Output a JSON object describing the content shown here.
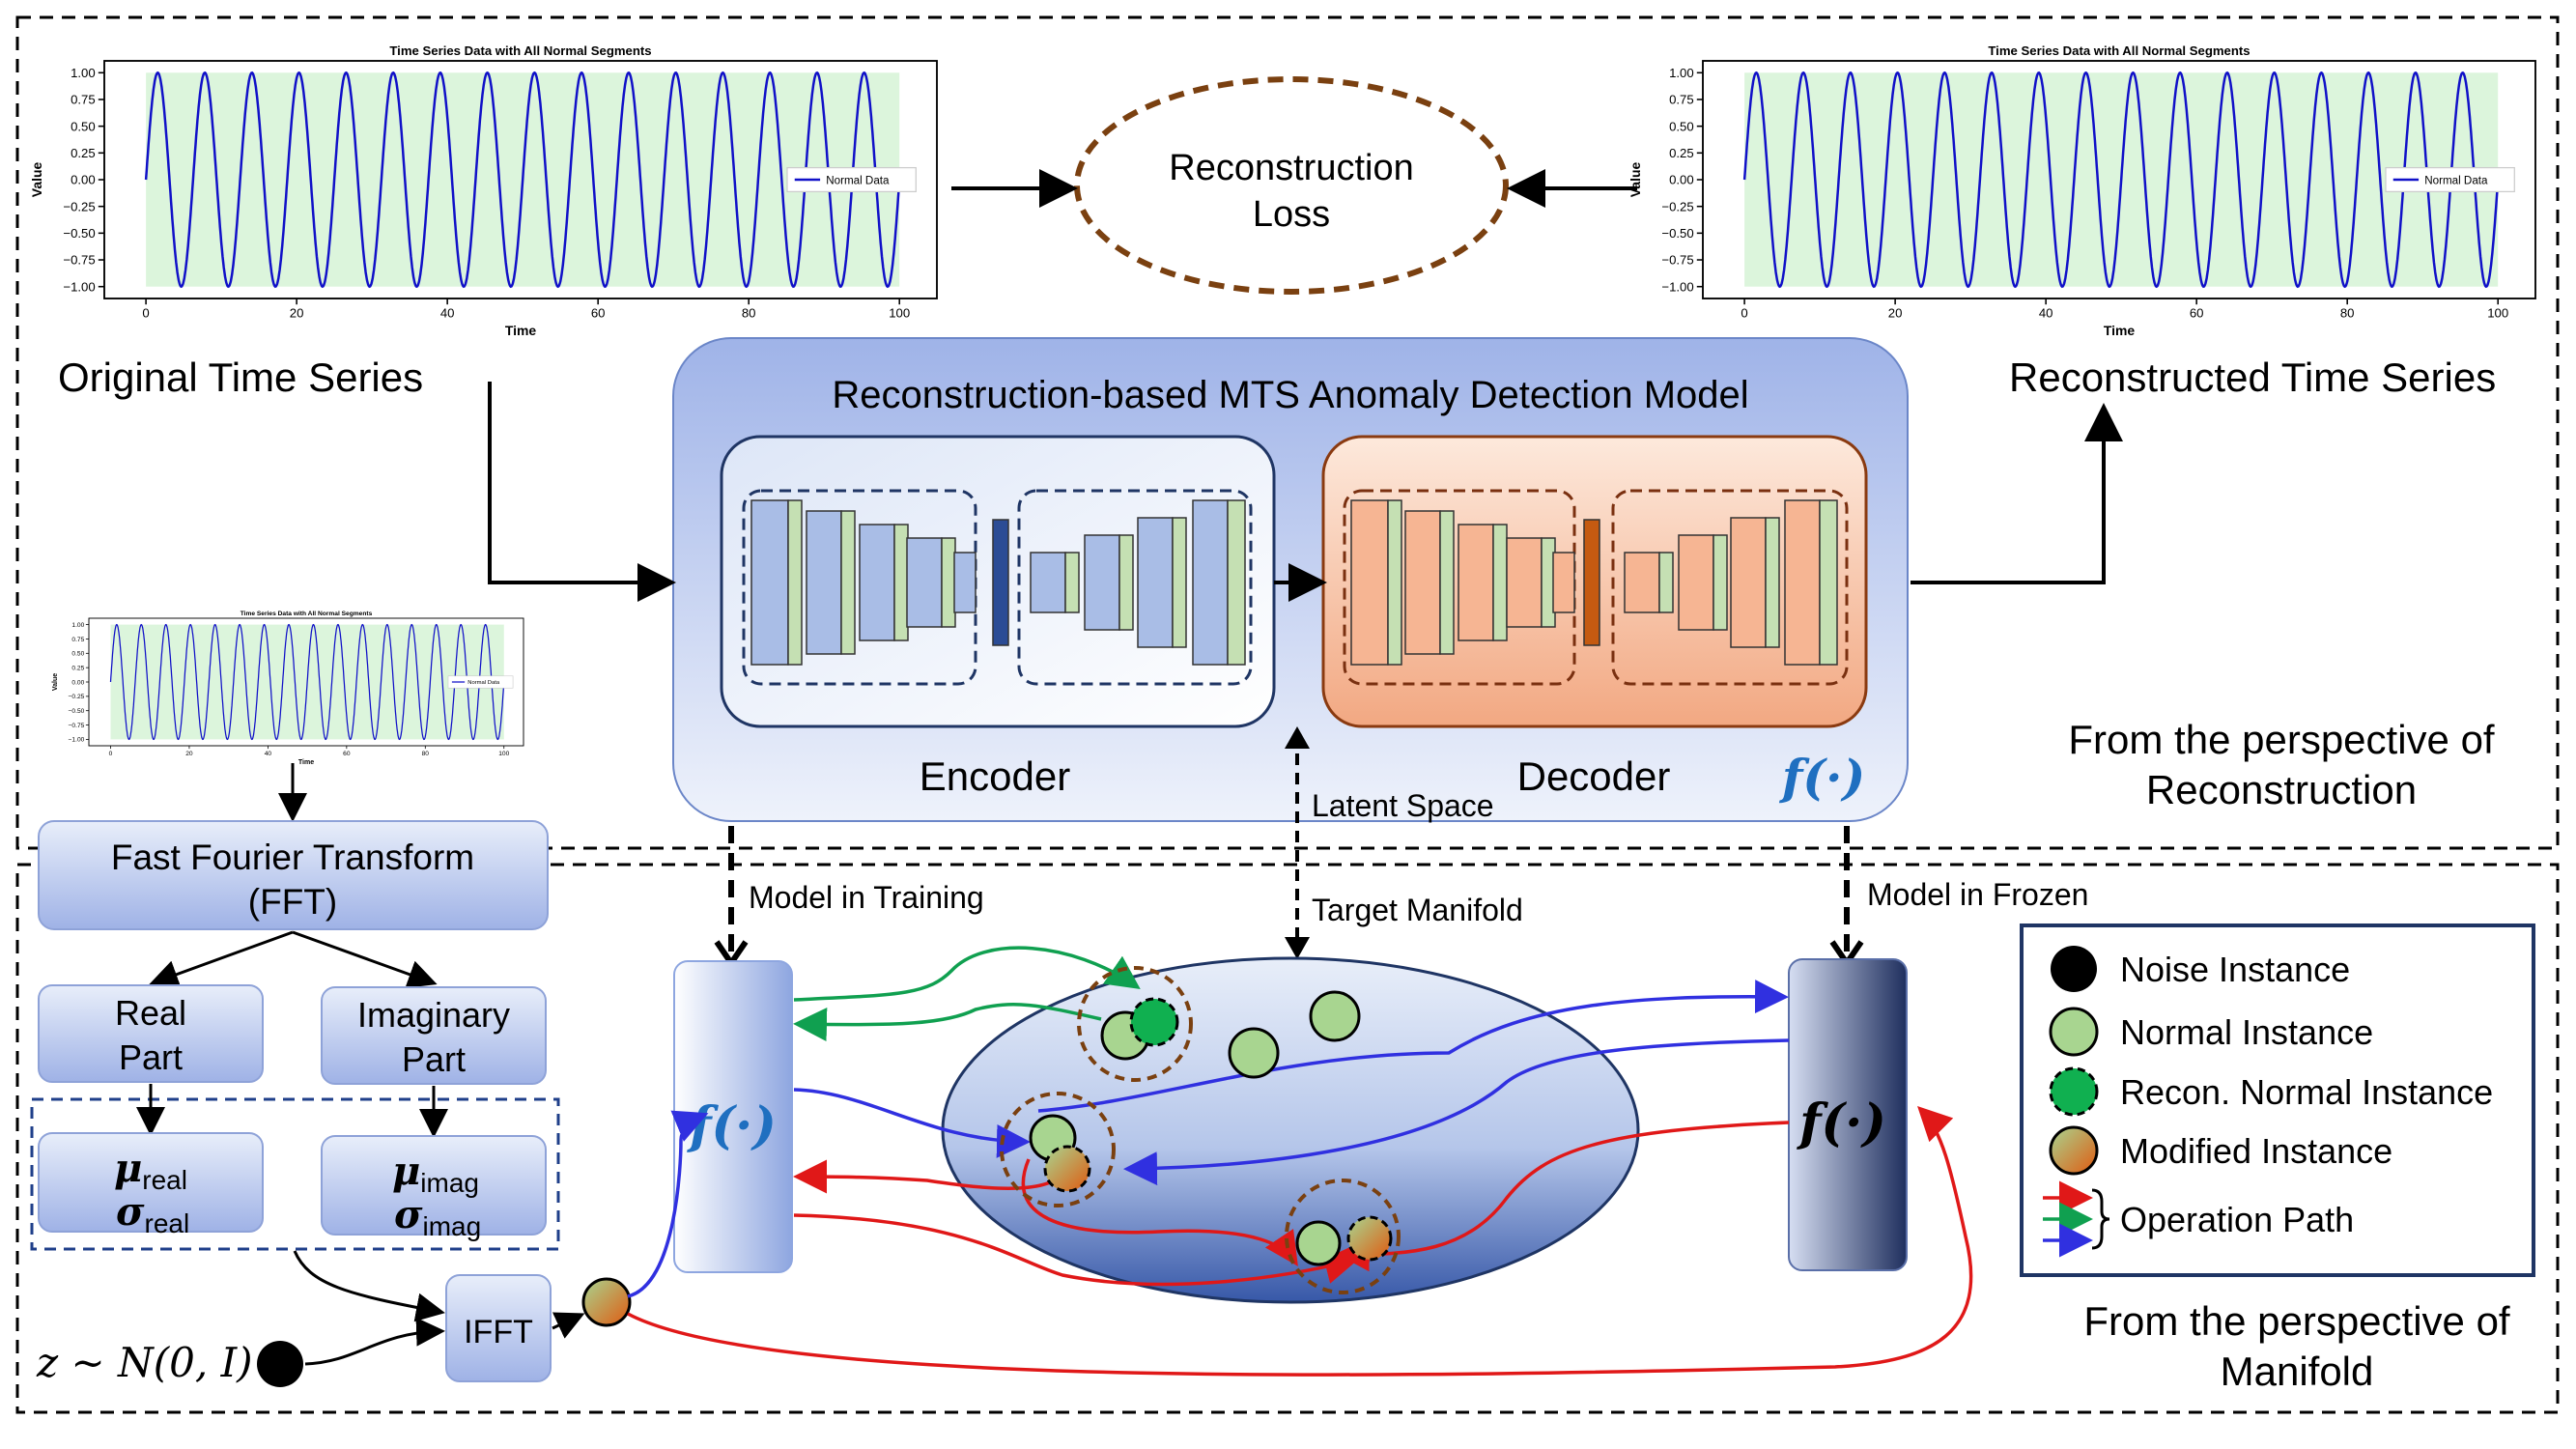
{
  "plots": {
    "title": "Time Series Data with All Normal Segments",
    "xlabel": "Time",
    "ylabel": "Value",
    "legend": "Normal Data",
    "yticks": [
      "1.00",
      "0.75",
      "0.50",
      "0.25",
      "0.00",
      "−0.25",
      "−0.50",
      "−0.75",
      "−1.00"
    ],
    "xticks": [
      "0",
      "20",
      "40",
      "60",
      "80",
      "100"
    ]
  },
  "chart_data": [
    {
      "type": "line",
      "title": "Time Series Data with All Normal Segments",
      "xlabel": "Time",
      "ylabel": "Value",
      "xlim": [
        0,
        100
      ],
      "ylim": [
        -1.0,
        1.0
      ],
      "series": [
        {
          "name": "Normal Data",
          "function": "sin",
          "cycles": 16,
          "color": "#1010c8"
        }
      ],
      "grid": false,
      "legend_position": "right"
    }
  ],
  "labels": {
    "original": "Original Time Series",
    "reconstructed": "Reconstructed Time Series",
    "loss_line1": "Reconstruction",
    "loss_line2": "Loss",
    "model_title": "Reconstruction-based MTS Anomaly Detection Model",
    "encoder": "Encoder",
    "decoder": "Decoder",
    "f_symbol": "f(·)",
    "latent_space": "Latent Space",
    "target_manifold": "Target Manifold",
    "model_training": "Model in Training",
    "model_frozen": "Model in Frozen",
    "persp_recon_1": "From the perspective of",
    "persp_recon_2": "Reconstruction",
    "persp_manifold_1": "From the perspective of",
    "persp_manifold_2": "Manifold",
    "fft_1": "Fast Fourier Transform",
    "fft_2": "(FFT)",
    "real_1": "Real",
    "real_2": "Part",
    "imag_1": "Imaginary",
    "imag_2": "Part",
    "mu_sym": "μ",
    "sigma_sym": "σ",
    "real_sub": "real",
    "imag_sub": "imag",
    "ifft": "IFFT",
    "noise_z": "z ~ N(0, I)"
  },
  "legend": {
    "noise": "Noise Instance",
    "normal": "Normal Instance",
    "recon": "Recon. Normal Instance",
    "modified": "Modified Instance",
    "path": "Operation Path"
  },
  "colors": {
    "blue_path": "#3030e0",
    "green_path": "#10a050",
    "red_path": "#e01818",
    "normal_fill": "#a8d590",
    "recon_fill": "#10b050",
    "loss_border": "#7a4010",
    "encoder_fill": "#a9bde6",
    "decoder_fill": "#f6b593",
    "layer_green": "#c5e0b3"
  }
}
